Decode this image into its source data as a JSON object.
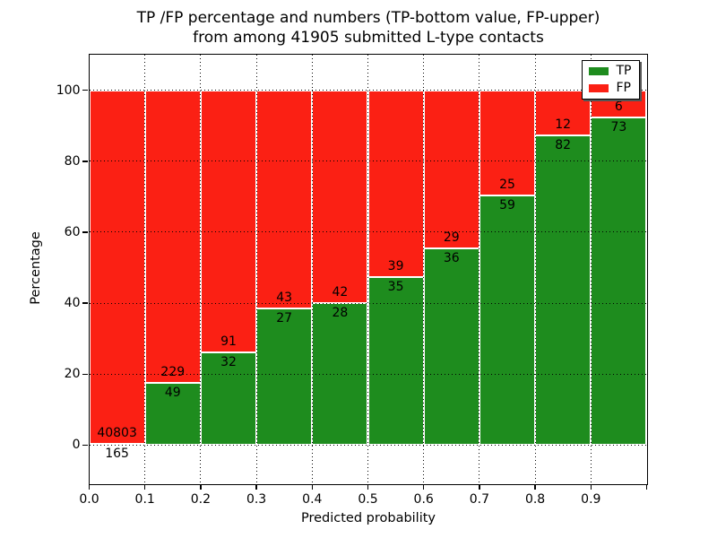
{
  "title": {
    "line1": "TP /FP percentage and numbers (TP-bottom value, FP-upper)",
    "line2": "from among 41905 submitted L-type contacts"
  },
  "chart_data": {
    "type": "bar",
    "stacked": true,
    "title": "TP /FP percentage and numbers (TP-bottom value, FP-upper)\nfrom among 41905 submitted L-type contacts",
    "xlabel": "Predicted probability",
    "ylabel": "Percentage",
    "xlim": [
      0.0,
      1.0
    ],
    "ylim": [
      -11,
      110
    ],
    "x_tick_labels": [
      "0.0",
      "0.1",
      "0.2",
      "0.3",
      "0.4",
      "0.5",
      "0.6",
      "0.7",
      "0.8",
      "0.9"
    ],
    "y_tick_values": [
      0,
      20,
      40,
      60,
      80,
      100
    ],
    "bins": [
      "0.0-0.1",
      "0.1-0.2",
      "0.2-0.3",
      "0.3-0.4",
      "0.4-0.5",
      "0.5-0.6",
      "0.6-0.7",
      "0.7-0.8",
      "0.8-0.9",
      "0.9-1.0"
    ],
    "series": [
      {
        "name": "TP",
        "color": "#1e8c1e",
        "counts": [
          165,
          49,
          32,
          27,
          28,
          35,
          36,
          59,
          82,
          73
        ]
      },
      {
        "name": "FP",
        "color": "#fb2014",
        "counts": [
          40803,
          229,
          91,
          43,
          42,
          39,
          29,
          25,
          12,
          6
        ]
      }
    ],
    "tp_percent_of_bin": [
      0.4,
      17.6,
      26.0,
      38.6,
      40.0,
      47.3,
      55.4,
      70.2,
      87.2,
      92.4
    ],
    "total_submitted": 41905,
    "grid": true,
    "legend_position": "upper right"
  }
}
